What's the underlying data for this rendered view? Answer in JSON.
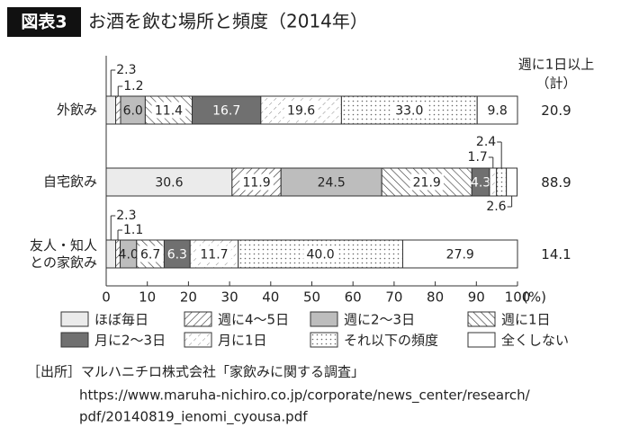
{
  "header": {
    "badge": "図表3",
    "title": "お酒を飲む場所と頻度（2014年）"
  },
  "chart_data": {
    "type": "stacked-bar-horizontal",
    "categories": [
      "外飲み",
      "自宅飲み",
      "友人・知人\nとの家飲み"
    ],
    "series": [
      {
        "name": "ほぼ毎日",
        "color": "#ebebeb",
        "values": [
          2.3,
          30.6,
          2.3
        ],
        "value_labels": [
          "2.3",
          "30.6",
          "2.3"
        ]
      },
      {
        "name": "週に4～5日",
        "color": "#ffffff",
        "pattern": "diagonal",
        "values": [
          1.2,
          11.9,
          1.1
        ],
        "value_labels": [
          "1.2",
          "11.9",
          "1.1"
        ]
      },
      {
        "name": "週に2～3日",
        "color": "#bdbdbd",
        "values": [
          6.0,
          24.5,
          4.0
        ],
        "value_labels": [
          "6.0",
          "24.5",
          "4.0"
        ]
      },
      {
        "name": "週に1日",
        "color": "#ffffff",
        "pattern": "backdiagonal",
        "values": [
          11.4,
          21.9,
          6.7
        ],
        "value_labels": [
          "11.4",
          "21.9",
          "6.7"
        ]
      },
      {
        "name": "月に2～3日",
        "color": "#707070",
        "values": [
          16.7,
          4.3,
          6.3
        ],
        "value_labels": [
          "16.7",
          "4.3",
          "6.3"
        ]
      },
      {
        "name": "月に1日",
        "color": "#ffffff",
        "pattern": "dashdiagonal",
        "values": [
          19.6,
          1.7,
          11.7
        ],
        "value_labels": [
          "19.6",
          "1.7",
          "11.7"
        ]
      },
      {
        "name": "それ以下の頻度",
        "color": "#ffffff",
        "pattern": "dots",
        "values": [
          33.0,
          2.4,
          40.0
        ],
        "value_labels": [
          "33.0",
          "2.4",
          "40.0"
        ]
      },
      {
        "name": "全くしない",
        "color": "#ffffff",
        "values": [
          9.8,
          2.6,
          27.9
        ],
        "value_labels": [
          "9.8",
          "2.6",
          "27.9"
        ]
      }
    ],
    "totals": {
      "label": [
        "週に1日以上",
        "（計）"
      ],
      "values": [
        20.9,
        88.9,
        14.1
      ]
    },
    "xlim": [
      0,
      100
    ],
    "xticks": [
      0,
      10,
      20,
      30,
      40,
      50,
      60,
      70,
      80,
      90,
      100
    ],
    "x_unit": "(%)"
  },
  "source": {
    "label": "［出所］マルハニチロ株式会社「家飲みに関する調査」",
    "url_lines": [
      "https://www.maruha-nichiro.co.jp/corporate/news_center/research/",
      "pdf/20140819_ienomi_cyousa.pdf"
    ]
  }
}
